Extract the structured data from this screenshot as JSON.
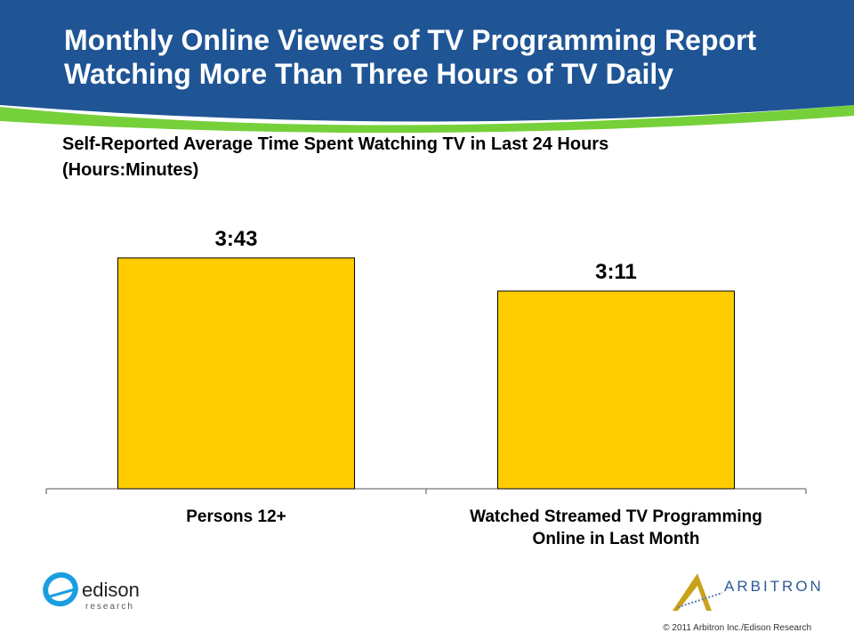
{
  "header": {
    "title_line1": "Monthly Online Viewers of TV Programming Report",
    "title_line2": "Watching More Than Three Hours of TV Daily",
    "colors": {
      "band": "#1f5595",
      "accent": "#76d03a"
    }
  },
  "chart_data": {
    "type": "bar",
    "title": "Self-Reported Average Time Spent Watching TV in Last 24 Hours",
    "subtitle": "(Hours:Minutes)",
    "categories": [
      "Persons 12+",
      "Watched Streamed TV Programming Online in Last Month"
    ],
    "category_lines": [
      [
        "Persons 12+"
      ],
      [
        "Watched Streamed TV Programming",
        "Online in Last Month"
      ]
    ],
    "values": [
      223,
      191
    ],
    "value_labels": [
      "3:43",
      "3:11"
    ],
    "unit": "minutes",
    "ylim": [
      0,
      240
    ],
    "bar_color": "#ffcc00",
    "grid": false
  },
  "logos": {
    "edison": {
      "name": "edison",
      "sub": "research"
    },
    "arbitron": "ARBITRON"
  },
  "footer": "© 2011 Arbitron Inc./Edison Research"
}
